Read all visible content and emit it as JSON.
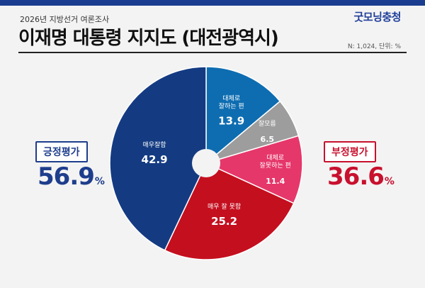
{
  "header": {
    "subtitle": "2026년 지방선거 여론조사",
    "title": "이재명 대통령 지지도 (대전광역시)",
    "brand": "굿모닝충청",
    "note": "N: 1,024, 단위: %"
  },
  "summary": {
    "positive": {
      "label": "긍정평가",
      "value": "56.9",
      "unit": "%"
    },
    "negative": {
      "label": "부정평가",
      "value": "36.6",
      "unit": "%"
    }
  },
  "colors": {
    "positive_strong": "#143b82",
    "positive_weak": "#0e6db1",
    "neutral": "#9d9d9d",
    "negative_weak": "#e6376a",
    "negative_strong": "#c40f1f"
  },
  "chart_data": {
    "type": "pie",
    "title": "",
    "slices": [
      {
        "label": "대체로 잘하는 편",
        "lines": [
          "대체로",
          "잘하는 편"
        ],
        "value": 13.9,
        "color": "#0e6db1"
      },
      {
        "label": "잘모름",
        "lines": [
          "잘모름"
        ],
        "value": 6.5,
        "color": "#9d9d9d"
      },
      {
        "label": "대체로 잘못하는 편",
        "lines": [
          "대체로",
          "잘못하는 편"
        ],
        "value": 11.4,
        "color": "#e6376a"
      },
      {
        "label": "매우 잘 못함",
        "lines": [
          "매우 잘 못함"
        ],
        "value": 25.2,
        "color": "#c40f1f"
      },
      {
        "label": "매우잘함",
        "lines": [
          "매우잘함"
        ],
        "value": 42.9,
        "color": "#143b82"
      }
    ],
    "start_at": "top",
    "direction": "clockwise",
    "donut_hole": true
  }
}
